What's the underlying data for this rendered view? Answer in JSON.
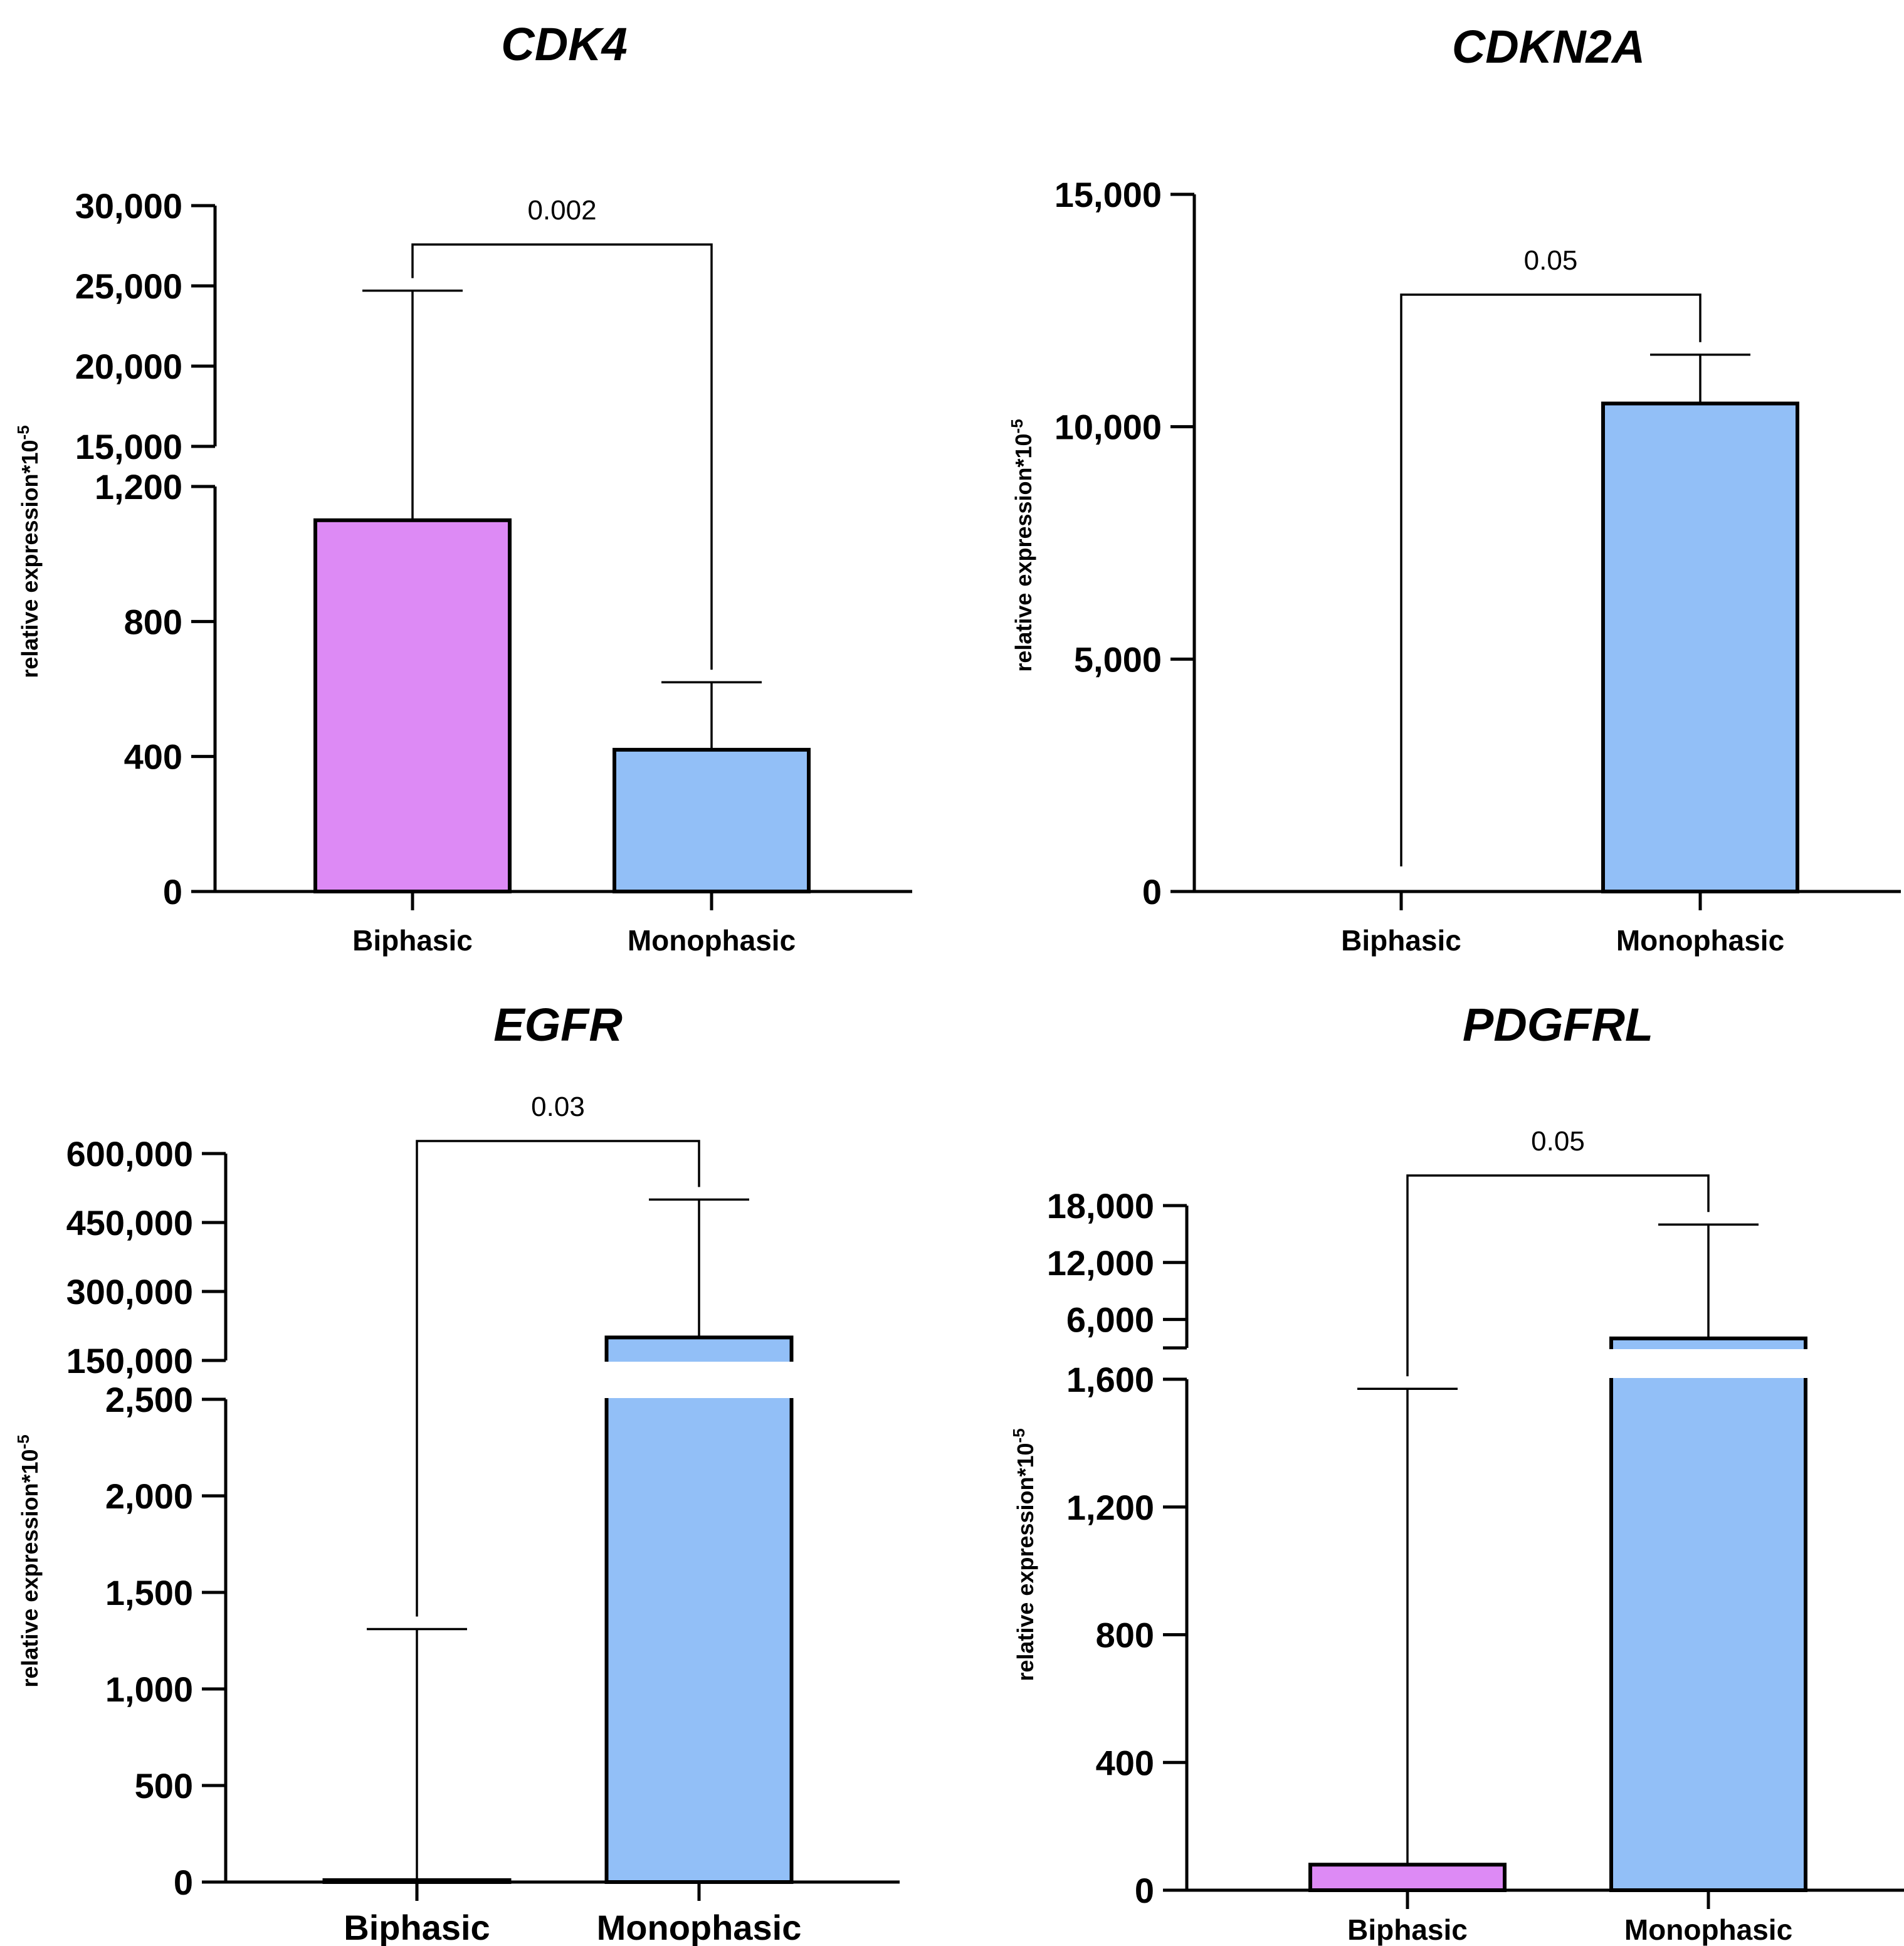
{
  "chart_data": [
    {
      "type": "bar",
      "title": "CDK4",
      "ylabel": "relative expression*10",
      "ylabel_exp": "-5",
      "categories": [
        "Biphasic",
        "Monophasic"
      ],
      "values": [
        1100,
        420
      ],
      "error_upper": [
        24700,
        620
      ],
      "colors": [
        "#dd8af5",
        "#92bff7"
      ],
      "axis_break": true,
      "lower_range": [
        0,
        1200
      ],
      "upper_range": [
        15000,
        30000
      ],
      "lower_ticks": [
        0,
        400,
        800,
        1200
      ],
      "lower_tick_labels": [
        "0",
        "400",
        "800",
        "1,200"
      ],
      "upper_ticks": [
        15000,
        20000,
        25000,
        30000
      ],
      "upper_tick_labels": [
        "15,000",
        "20,000",
        "25,000",
        "30,000"
      ],
      "pvalue": "0.002"
    },
    {
      "type": "bar",
      "title": "CDKN2A",
      "ylabel": "relative expression*10",
      "ylabel_exp": "-5",
      "categories": [
        "Biphasic",
        "Monophasic"
      ],
      "values": [
        0,
        10500
      ],
      "error_upper": [
        0,
        11550
      ],
      "colors": [
        "#dd8af5",
        "#92bff7"
      ],
      "axis_break": false,
      "ylim": [
        0,
        15000
      ],
      "ticks": [
        0,
        5000,
        10000,
        15000
      ],
      "tick_labels": [
        "0",
        "5,000",
        "10,000",
        "15,000"
      ],
      "pvalue": "0.05"
    },
    {
      "type": "bar",
      "title": "EGFR",
      "ylabel": "relative expression*10",
      "ylabel_exp": "-5",
      "categories": [
        "Biphasic",
        "Monophasic"
      ],
      "values": [
        10,
        200000
      ],
      "error_upper": [
        1310,
        500000
      ],
      "colors": [
        "#dd8af5",
        "#92bff7"
      ],
      "axis_break": true,
      "lower_range": [
        0,
        2500
      ],
      "upper_range": [
        150000,
        600000
      ],
      "lower_ticks": [
        0,
        500,
        1000,
        1500,
        2000,
        2500
      ],
      "lower_tick_labels": [
        "0",
        "500",
        "1,000",
        "1,500",
        "2,000",
        "2,500"
      ],
      "upper_ticks": [
        150000,
        300000,
        450000,
        600000
      ],
      "upper_tick_labels": [
        "150,000",
        "300,000",
        "450,000",
        "600,000"
      ],
      "pvalue": "0.03"
    },
    {
      "type": "bar",
      "title": "PDGFRL",
      "ylabel": "relative expression*10",
      "ylabel_exp": "-5",
      "categories": [
        "Biphasic",
        "Monophasic"
      ],
      "values": [
        80,
        4000
      ],
      "error_upper": [
        1570,
        16000
      ],
      "colors": [
        "#dd8af5",
        "#92bff7"
      ],
      "axis_break": true,
      "lower_range": [
        0,
        1600
      ],
      "upper_range": [
        3000,
        18000
      ],
      "lower_ticks": [
        0,
        400,
        800,
        1200,
        1600
      ],
      "lower_tick_labels": [
        "0",
        "400",
        "800",
        "1,200",
        "1,600"
      ],
      "upper_ticks": [
        6000,
        12000,
        18000
      ],
      "upper_tick_labels": [
        "6,000",
        "12,000",
        "18,000"
      ],
      "pvalue": "0.05"
    }
  ]
}
